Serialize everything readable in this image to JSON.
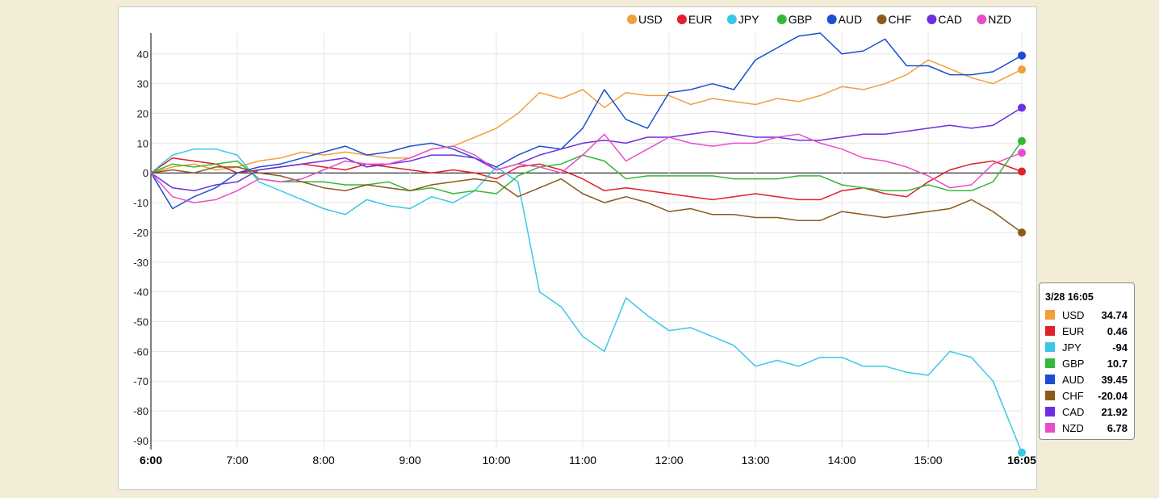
{
  "chart_data": {
    "type": "line",
    "x": [
      "6:00",
      "6:15",
      "6:30",
      "6:45",
      "7:00",
      "7:15",
      "7:30",
      "7:45",
      "8:00",
      "8:15",
      "8:30",
      "8:45",
      "9:00",
      "9:15",
      "9:30",
      "9:45",
      "10:00",
      "10:15",
      "10:30",
      "10:45",
      "11:00",
      "11:15",
      "11:30",
      "11:45",
      "12:00",
      "12:15",
      "12:30",
      "12:45",
      "13:00",
      "13:15",
      "13:30",
      "13:45",
      "14:00",
      "14:15",
      "14:30",
      "14:45",
      "15:00",
      "15:15",
      "15:30",
      "15:45",
      "16:05"
    ],
    "x_ticks": [
      "6:00",
      "7:00",
      "8:00",
      "9:00",
      "10:00",
      "11:00",
      "12:00",
      "13:00",
      "14:00",
      "15:00",
      "16:05"
    ],
    "x_ticks_bold": [
      "6:00",
      "16:05"
    ],
    "ylim": [
      -93,
      47
    ],
    "y_ticks": [
      40,
      30,
      20,
      10,
      0,
      -10,
      -20,
      -30,
      -40,
      -50,
      -60,
      -70,
      -80,
      -90
    ],
    "grid": true,
    "legend": "top-right",
    "series": [
      {
        "name": "USD",
        "color": "#f0a03c",
        "values": [
          0,
          2,
          3,
          1,
          2,
          4,
          5,
          7,
          6,
          7,
          6,
          5,
          5,
          8,
          9,
          12,
          15,
          20,
          27,
          25,
          28,
          22,
          27,
          26,
          26,
          23,
          25,
          24,
          23,
          25,
          24,
          26,
          29,
          28,
          30,
          33,
          38,
          35,
          32,
          30,
          34.74
        ]
      },
      {
        "name": "EUR",
        "color": "#e0202a",
        "values": [
          0,
          5,
          4,
          3,
          0,
          1,
          2,
          3,
          2,
          1,
          3,
          2,
          1,
          0,
          1,
          0,
          -2,
          2,
          3,
          1,
          -2,
          -6,
          -5,
          -6,
          -7,
          -8,
          -9,
          -8,
          -7,
          -8,
          -9,
          -9,
          -6,
          -5,
          -7,
          -8,
          -3,
          1,
          3,
          4,
          0.46
        ]
      },
      {
        "name": "JPY",
        "color": "#3cc7e8",
        "values": [
          0,
          6,
          8,
          8,
          6,
          -3,
          -6,
          -9,
          -12,
          -14,
          -9,
          -11,
          -12,
          -8,
          -10,
          -6,
          2,
          -3,
          -40,
          -45,
          -55,
          -60,
          -42,
          -48,
          -53,
          -52,
          -55,
          -58,
          -65,
          -63,
          -65,
          -62,
          -62,
          -65,
          -65,
          -67,
          -68,
          -60,
          -62,
          -70,
          -94
        ]
      },
      {
        "name": "GBP",
        "color": "#34b838",
        "values": [
          0,
          3,
          2,
          3,
          4,
          -2,
          -3,
          -3,
          -3,
          -4,
          -4,
          -3,
          -6,
          -5,
          -7,
          -6,
          -7,
          -1,
          2,
          3,
          6,
          4,
          -2,
          -1,
          -1,
          -1,
          -1,
          -2,
          -2,
          -2,
          -1,
          -1,
          -4,
          -5,
          -6,
          -6,
          -4,
          -6,
          -6,
          -3,
          10.7
        ]
      },
      {
        "name": "AUD",
        "color": "#1b4fd1",
        "values": [
          0,
          -12,
          -8,
          -5,
          0,
          2,
          3,
          5,
          7,
          9,
          6,
          7,
          9,
          10,
          8,
          5,
          2,
          6,
          9,
          8,
          15,
          28,
          18,
          15,
          27,
          28,
          30,
          28,
          38,
          42,
          46,
          47,
          40,
          41,
          45,
          36,
          36,
          33,
          33,
          34,
          39.45
        ]
      },
      {
        "name": "CHF",
        "color": "#8b5a1c",
        "values": [
          0,
          1,
          0,
          2,
          2,
          0,
          -1,
          -3,
          -5,
          -6,
          -4,
          -5,
          -6,
          -4,
          -3,
          -2,
          -3,
          -8,
          -5,
          -2,
          -7,
          -10,
          -8,
          -10,
          -13,
          -12,
          -14,
          -14,
          -15,
          -15,
          -16,
          -16,
          -13,
          -14,
          -15,
          -14,
          -13,
          -12,
          -9,
          -13,
          -20.04
        ]
      },
      {
        "name": "CAD",
        "color": "#6e2fe0",
        "values": [
          0,
          -5,
          -6,
          -4,
          -3,
          1,
          2,
          3,
          4,
          5,
          2,
          3,
          4,
          6,
          6,
          5,
          1,
          3,
          6,
          8,
          10,
          11,
          10,
          12,
          12,
          13,
          14,
          13,
          12,
          12,
          11,
          11,
          12,
          13,
          13,
          14,
          15,
          16,
          15,
          16,
          21.92
        ]
      },
      {
        "name": "NZD",
        "color": "#e84ec9",
        "values": [
          0,
          -8,
          -10,
          -9,
          -6,
          -2,
          -3,
          -2,
          1,
          4,
          3,
          3,
          5,
          8,
          9,
          6,
          1,
          3,
          2,
          0,
          6,
          13,
          4,
          8,
          12,
          10,
          9,
          10,
          10,
          12,
          13,
          10,
          8,
          5,
          4,
          2,
          -1,
          -5,
          -4,
          3,
          6.78
        ]
      }
    ]
  },
  "tooltip": {
    "title": "3/28 16:05",
    "rows": [
      {
        "name": "USD",
        "value": "34.74"
      },
      {
        "name": "EUR",
        "value": "0.46"
      },
      {
        "name": "JPY",
        "value": "-94"
      },
      {
        "name": "GBP",
        "value": "10.7"
      },
      {
        "name": "AUD",
        "value": "39.45"
      },
      {
        "name": "CHF",
        "value": "-20.04"
      },
      {
        "name": "CAD",
        "value": "21.92"
      },
      {
        "name": "NZD",
        "value": "6.78"
      }
    ]
  }
}
